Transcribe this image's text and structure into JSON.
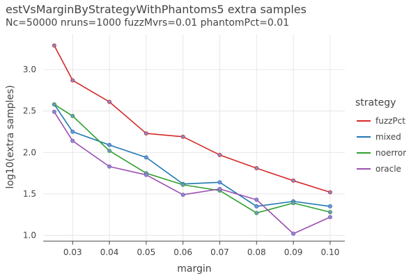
{
  "chart_data": {
    "type": "line",
    "title": "estVsMarginByStrategyWithPhantoms5 extra samples",
    "subtitle": "Nc=50000 nruns=1000 fuzzMvrs=0.01 phantomPct=0.01",
    "xlabel": "margin",
    "ylabel": "log10(extra samples)",
    "xlim": [
      0.022,
      0.104
    ],
    "ylim": [
      0.93,
      3.42
    ],
    "xticks": [
      0.03,
      0.04,
      0.05,
      0.06,
      0.07,
      0.08,
      0.09,
      0.1
    ],
    "xtick_labels": [
      "0.03",
      "0.04",
      "0.05",
      "0.06",
      "0.07",
      "0.08",
      "0.09",
      "0.10"
    ],
    "yticks": [
      1.0,
      1.5,
      2.0,
      2.5,
      3.0
    ],
    "ytick_labels": [
      "1.0",
      "1.5",
      "2.0",
      "2.5",
      "3.0"
    ],
    "x": [
      0.025,
      0.03,
      0.04,
      0.05,
      0.06,
      0.07,
      0.08,
      0.09,
      0.1
    ],
    "legend_title": "strategy",
    "marker_color": "#7b8fd4",
    "series": [
      {
        "name": "fuzzPct",
        "color": "#d62728",
        "values": [
          3.29,
          2.87,
          2.61,
          2.23,
          2.19,
          1.97,
          1.81,
          1.66,
          1.52
        ]
      },
      {
        "name": "mixed",
        "color": "#1f77b4",
        "values": [
          2.58,
          2.25,
          2.09,
          1.94,
          1.62,
          1.64,
          1.35,
          1.41,
          1.35
        ]
      },
      {
        "name": "noerror",
        "color": "#2ca02c",
        "values": [
          2.58,
          2.44,
          2.02,
          1.75,
          1.61,
          1.54,
          1.27,
          1.39,
          1.28
        ]
      },
      {
        "name": "oracle",
        "color": "#9a4fb0",
        "values": [
          2.49,
          2.14,
          1.83,
          1.73,
          1.49,
          1.56,
          1.43,
          1.02,
          1.22
        ]
      }
    ]
  }
}
